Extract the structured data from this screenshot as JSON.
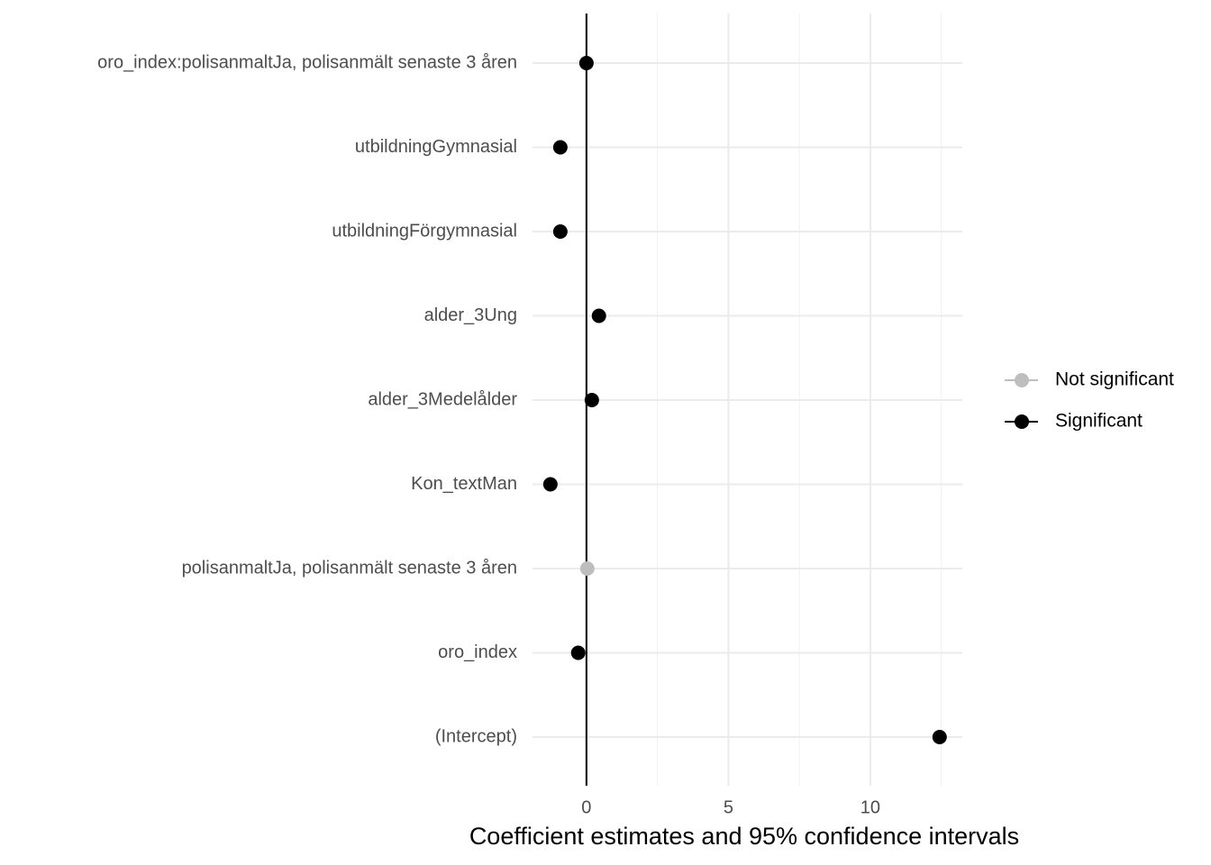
{
  "chart_data": {
    "type": "dotplot",
    "x_label": "Coefficient estimates and 95% confidence intervals",
    "categories": [
      "oro_index:polisanmaltJa, polisanmält senaste 3 åren",
      "utbildningGymnasial",
      "utbildningFörgymnasial",
      "alder_3Ung",
      "alder_3Medelålder",
      "Kon_textMan",
      "polisanmaltJa, polisanmält senaste 3 åren",
      "oro_index",
      "(Intercept)"
    ],
    "series": [
      {
        "name": "Not significant",
        "color": "#bebebe",
        "values": [
          null,
          null,
          null,
          null,
          null,
          null,
          0.03,
          null,
          null
        ]
      },
      {
        "name": "Significant",
        "color": "#000000",
        "values": [
          0.0,
          -0.92,
          -0.92,
          0.44,
          0.19,
          -1.27,
          null,
          -0.29,
          12.44
        ]
      }
    ],
    "xlim": [
      -1.9,
      13.24
    ],
    "xticks": [
      0,
      5,
      10
    ],
    "xminor": [
      2.5,
      7.5,
      12.5
    ],
    "reference_line": 0,
    "grid": true,
    "legend": "right"
  }
}
